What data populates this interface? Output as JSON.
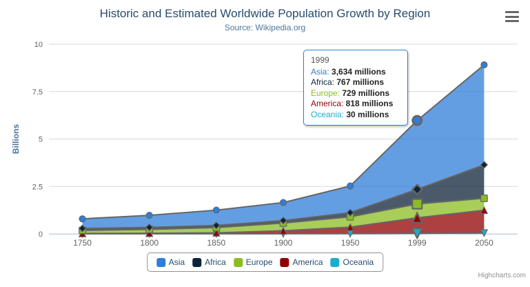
{
  "chart": {
    "title": "Historic and Estimated Worldwide Population Growth by Region",
    "subtitle": "Source: Wikipedia.org",
    "credits": "Highcharts.com"
  },
  "chart_data": {
    "type": "area",
    "stacking": "normal",
    "title": "Historic and Estimated Worldwide Population Growth by Region",
    "subtitle": "Source: Wikipedia.org",
    "categories": [
      "1750",
      "1800",
      "1850",
      "1900",
      "1950",
      "1999",
      "2050"
    ],
    "xlabel": "",
    "ylabel": "Billions",
    "unit": "millions",
    "yAxis": {
      "title": "Billions",
      "ticks": [
        0,
        2.5,
        5,
        7.5,
        10
      ],
      "max": 10
    },
    "grid": "horizontal",
    "legend_position": "bottom",
    "stack_order_bottom_to_top": [
      "Oceania",
      "America",
      "Europe",
      "Africa",
      "Asia"
    ],
    "series": [
      {
        "name": "Asia",
        "color": "#2f7ed8",
        "marker": "circle",
        "values": [
          502,
          635,
          809,
          947,
          1402,
          3634,
          5268
        ]
      },
      {
        "name": "Africa",
        "color": "#0d233a",
        "marker": "diamond",
        "values": [
          106,
          107,
          111,
          133,
          221,
          767,
          1766
        ]
      },
      {
        "name": "Europe",
        "color": "#8bbc21",
        "marker": "square",
        "values": [
          163,
          203,
          276,
          408,
          547,
          729,
          628
        ]
      },
      {
        "name": "America",
        "color": "#910000",
        "marker": "triangle",
        "values": [
          18,
          31,
          54,
          156,
          339,
          818,
          1201
        ]
      },
      {
        "name": "Oceania",
        "color": "#1aadce",
        "marker": "triangle-down",
        "values": [
          2,
          2,
          2,
          6,
          13,
          30,
          46
        ]
      }
    ]
  },
  "tooltip": {
    "header": "1999",
    "hover_index": 5,
    "border_color": "#2f7ed8",
    "rows": [
      {
        "name": "Asia",
        "color": "#2f7ed8",
        "value": "3,634 millions"
      },
      {
        "name": "Africa",
        "color": "#0d233a",
        "value": "767 millions"
      },
      {
        "name": "Europe",
        "color": "#8bbc21",
        "value": "729 millions"
      },
      {
        "name": "America",
        "color": "#910000",
        "value": "818 millions"
      },
      {
        "name": "Oceania",
        "color": "#1aadce",
        "value": "30 millions"
      }
    ]
  },
  "theme": {
    "title_color": "#274b6d",
    "subtitle_color": "#4d759e",
    "axis_label_color": "#606060",
    "yaxis_title_color": "#4d759e",
    "grid_color": "#d8d8d8",
    "xaxis_line_color": "#c0d0e0",
    "series_line_color": "#666666",
    "legend_border_color": "#909090",
    "credits_color": "#909090",
    "fill_opacity": 0.75
  }
}
